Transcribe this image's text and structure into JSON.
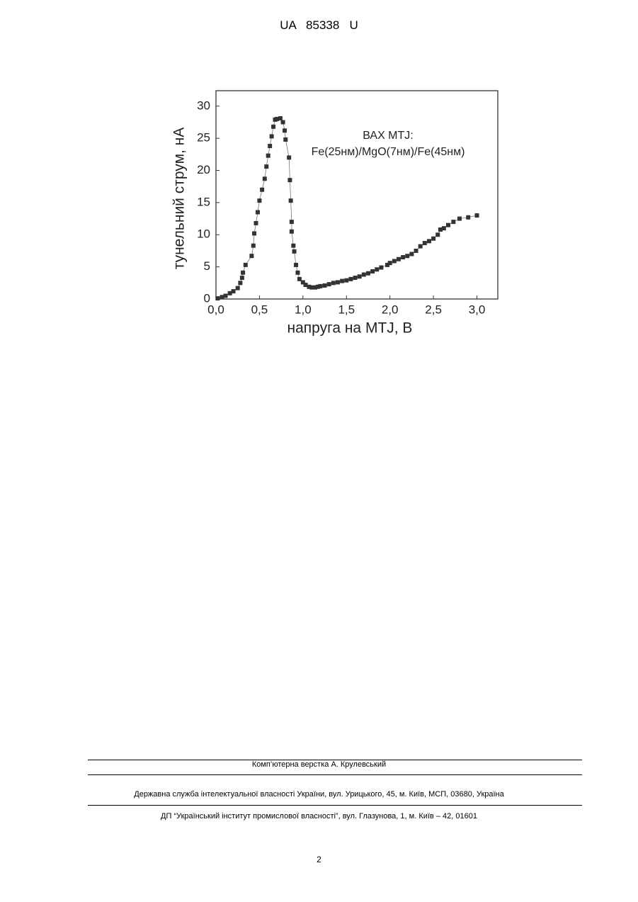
{
  "header": {
    "title": "UA   85338   U"
  },
  "chart_data": {
    "type": "scatter",
    "xlabel": "напруга на MTJ, В",
    "ylabel": "тунельний струм, нА",
    "annotations": [
      "ВАХ MTJ:",
      "Fe(25нм)/MgO(7нм)/Fe(45нм)"
    ],
    "xlim": [
      0,
      3.24
    ],
    "ylim": [
      0,
      32.4
    ],
    "xticks": [
      {
        "value": 0,
        "label": "0,0"
      },
      {
        "value": 0.5,
        "label": "0,5"
      },
      {
        "value": 1,
        "label": "1,0"
      },
      {
        "value": 1.5,
        "label": "1,5"
      },
      {
        "value": 2,
        "label": "2,0"
      },
      {
        "value": 2.5,
        "label": "2,5"
      },
      {
        "value": 3,
        "label": "3,0"
      }
    ],
    "yticks": [
      0,
      5,
      10,
      15,
      20,
      25,
      30
    ],
    "color": "#333333",
    "x": [
      0.02,
      0.07,
      0.11,
      0.16,
      0.2,
      0.25,
      0.28,
      0.3,
      0.31,
      0.34,
      0.41,
      0.43,
      0.44,
      0.46,
      0.48,
      0.5,
      0.53,
      0.56,
      0.58,
      0.6,
      0.62,
      0.64,
      0.66,
      0.68,
      0.7,
      0.74,
      0.77,
      0.79,
      0.8,
      0.84,
      0.85,
      0.86,
      0.87,
      0.87,
      0.89,
      0.9,
      0.92,
      0.94,
      0.96,
      1.0,
      1.03,
      1.07,
      1.1,
      1.14,
      1.17,
      1.2,
      1.25,
      1.3,
      1.35,
      1.4,
      1.45,
      1.5,
      1.55,
      1.6,
      1.65,
      1.7,
      1.75,
      1.8,
      1.85,
      1.9,
      1.97,
      2.0,
      2.05,
      2.1,
      2.15,
      2.2,
      2.25,
      2.3,
      2.35,
      2.4,
      2.45,
      2.5,
      2.55,
      2.58,
      2.62,
      2.67,
      2.73,
      2.8,
      2.9,
      3.0
    ],
    "values": [
      0.1,
      0.3,
      0.5,
      0.9,
      1.2,
      1.7,
      2.5,
      3.3,
      4.1,
      5.3,
      6.7,
      8.3,
      10.2,
      11.8,
      13.5,
      15.3,
      17.0,
      18.7,
      20.6,
      22.3,
      23.8,
      25.3,
      26.8,
      27.9,
      28.0,
      28.1,
      27.5,
      26.2,
      24.8,
      22.0,
      18.5,
      15.3,
      12.0,
      10.5,
      8.3,
      7.4,
      5.3,
      4.1,
      3.1,
      2.6,
      2.2,
      1.9,
      1.8,
      1.8,
      1.9,
      2.0,
      2.1,
      2.3,
      2.5,
      2.6,
      2.8,
      2.9,
      3.1,
      3.3,
      3.5,
      3.8,
      4.0,
      4.3,
      4.6,
      4.9,
      5.3,
      5.6,
      5.9,
      6.2,
      6.5,
      6.7,
      7.0,
      7.5,
      8.2,
      8.7,
      9.0,
      9.4,
      10.0,
      10.8,
      11.0,
      11.5,
      12.0,
      12.5,
      12.7,
      13.0
    ]
  },
  "footer": {
    "lines": [
      "Комп’ютерна верстка А. Крулевський",
      "Державна служба інтелектуальної власності України, вул. Урицького, 45, м. Київ, МСП, 03680, Україна",
      "ДП “Український інститут промислової власності”, вул. Глазунова, 1, м. Київ – 42, 01601"
    ]
  },
  "page_number": "2"
}
